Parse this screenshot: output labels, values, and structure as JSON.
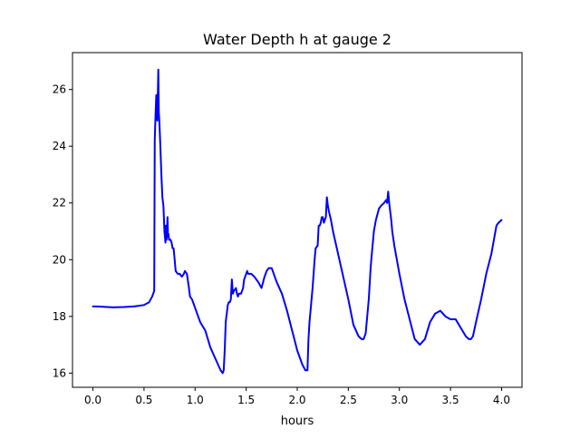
{
  "chart_data": {
    "type": "line",
    "title": "Water Depth h at gauge 2",
    "xlabel": "hours",
    "ylabel": "",
    "xlim": [
      -0.2,
      4.2
    ],
    "ylim": [
      15.5,
      27.3
    ],
    "xticks": [
      0.0,
      0.5,
      1.0,
      1.5,
      2.0,
      2.5,
      3.0,
      3.5,
      4.0
    ],
    "xtick_labels": [
      "0.0",
      "0.5",
      "1.0",
      "1.5",
      "2.0",
      "2.5",
      "3.0",
      "3.5",
      "4.0"
    ],
    "yticks": [
      16,
      18,
      20,
      22,
      24,
      26
    ],
    "ytick_labels": [
      "16",
      "18",
      "20",
      "22",
      "24",
      "26"
    ],
    "grid": false,
    "series": [
      {
        "color": "#0000ff",
        "x": [
          0.0,
          0.05,
          0.1,
          0.2,
          0.3,
          0.4,
          0.5,
          0.55,
          0.58,
          0.6,
          0.605,
          0.61,
          0.62,
          0.625,
          0.63,
          0.635,
          0.64,
          0.645,
          0.65,
          0.66,
          0.67,
          0.68,
          0.69,
          0.7,
          0.705,
          0.71,
          0.715,
          0.72,
          0.725,
          0.73,
          0.735,
          0.74,
          0.745,
          0.75,
          0.76,
          0.77,
          0.78,
          0.79,
          0.8,
          0.81,
          0.83,
          0.85,
          0.87,
          0.89,
          0.9,
          0.92,
          0.94,
          0.95,
          0.97,
          1.0,
          1.05,
          1.1,
          1.15,
          1.2,
          1.25,
          1.27,
          1.28,
          1.29,
          1.3,
          1.32,
          1.33,
          1.34,
          1.35,
          1.36,
          1.37,
          1.38,
          1.4,
          1.41,
          1.42,
          1.43,
          1.45,
          1.47,
          1.48,
          1.5,
          1.51,
          1.52,
          1.55,
          1.58,
          1.6,
          1.62,
          1.65,
          1.68,
          1.7,
          1.72,
          1.75,
          1.8,
          1.85,
          1.9,
          1.95,
          2.0,
          2.05,
          2.08,
          2.1,
          2.11,
          2.12,
          2.15,
          2.17,
          2.18,
          2.2,
          2.21,
          2.22,
          2.23,
          2.24,
          2.25,
          2.26,
          2.28,
          2.29,
          2.3,
          2.31,
          2.33,
          2.35,
          2.4,
          2.45,
          2.5,
          2.55,
          2.6,
          2.63,
          2.65,
          2.67,
          2.7,
          2.72,
          2.75,
          2.77,
          2.8,
          2.82,
          2.85,
          2.87,
          2.88,
          2.89,
          2.9,
          2.91,
          2.92,
          2.93,
          2.95,
          3.0,
          3.05,
          3.1,
          3.15,
          3.2,
          3.25,
          3.3,
          3.35,
          3.4,
          3.45,
          3.5,
          3.55,
          3.6,
          3.65,
          3.68,
          3.7,
          3.72,
          3.75,
          3.8,
          3.85,
          3.9,
          3.95,
          3.97,
          4.0
        ],
        "y": [
          18.35,
          18.35,
          18.34,
          18.32,
          18.33,
          18.35,
          18.4,
          18.5,
          18.7,
          18.9,
          24.2,
          24.8,
          25.8,
          25.3,
          24.9,
          25.8,
          26.7,
          25.2,
          24.9,
          24.0,
          23.0,
          22.2,
          21.9,
          21.0,
          20.8,
          20.6,
          21.2,
          20.7,
          21.0,
          21.5,
          20.8,
          20.9,
          20.7,
          20.7,
          20.7,
          20.6,
          20.4,
          20.4,
          20.0,
          19.6,
          19.5,
          19.5,
          19.4,
          19.5,
          19.6,
          19.5,
          19.0,
          18.7,
          18.6,
          18.3,
          17.8,
          17.5,
          16.9,
          16.5,
          16.1,
          16.0,
          16.1,
          16.8,
          17.8,
          18.4,
          18.5,
          18.5,
          18.6,
          19.3,
          18.8,
          18.9,
          19.0,
          18.8,
          18.7,
          18.8,
          18.8,
          19.0,
          19.3,
          19.5,
          19.6,
          19.5,
          19.5,
          19.4,
          19.3,
          19.2,
          19.0,
          19.4,
          19.6,
          19.7,
          19.7,
          19.2,
          18.8,
          18.2,
          17.5,
          16.8,
          16.3,
          16.1,
          16.1,
          17.2,
          17.8,
          19.0,
          20.0,
          20.4,
          20.5,
          21.2,
          21.2,
          21.3,
          21.5,
          21.5,
          21.3,
          21.5,
          22.2,
          21.9,
          21.7,
          21.4,
          21.0,
          20.2,
          19.4,
          18.6,
          17.7,
          17.3,
          17.2,
          17.2,
          17.4,
          18.6,
          19.8,
          21.0,
          21.4,
          21.8,
          21.9,
          22.0,
          22.1,
          22.0,
          22.4,
          22.0,
          21.7,
          21.4,
          21.0,
          20.5,
          19.5,
          18.6,
          17.9,
          17.2,
          17.0,
          17.2,
          17.8,
          18.1,
          18.2,
          18.0,
          17.9,
          17.9,
          17.6,
          17.3,
          17.2,
          17.2,
          17.3,
          17.8,
          18.6,
          19.5,
          20.2,
          21.2,
          21.3,
          21.4
        ]
      }
    ]
  }
}
